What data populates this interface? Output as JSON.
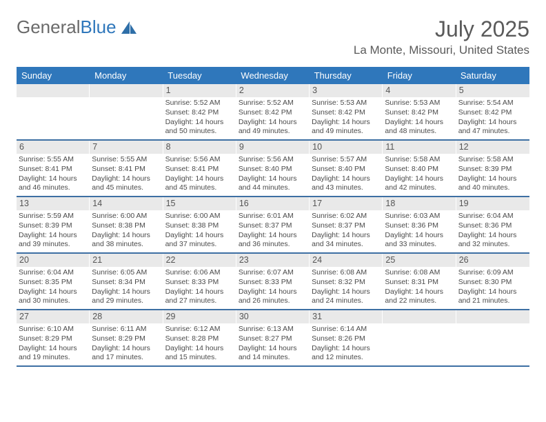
{
  "logo": {
    "general": "General",
    "blue": "Blue"
  },
  "title": "July 2025",
  "location": "La Monte, Missouri, United States",
  "colors": {
    "header_bg": "#2f77bb",
    "header_text": "#ffffff",
    "daynum_bg": "#e9e9e9",
    "border": "#3d6fa3",
    "text": "#4a4a4a",
    "page_bg": "#ffffff"
  },
  "dow": [
    "Sunday",
    "Monday",
    "Tuesday",
    "Wednesday",
    "Thursday",
    "Friday",
    "Saturday"
  ],
  "layout": {
    "columns": 7,
    "rows": 5,
    "first_day_index": 2
  },
  "days": [
    {
      "n": 1,
      "sr": "5:52 AM",
      "ss": "8:42 PM",
      "dh": 14,
      "dm": 50
    },
    {
      "n": 2,
      "sr": "5:52 AM",
      "ss": "8:42 PM",
      "dh": 14,
      "dm": 49
    },
    {
      "n": 3,
      "sr": "5:53 AM",
      "ss": "8:42 PM",
      "dh": 14,
      "dm": 49
    },
    {
      "n": 4,
      "sr": "5:53 AM",
      "ss": "8:42 PM",
      "dh": 14,
      "dm": 48
    },
    {
      "n": 5,
      "sr": "5:54 AM",
      "ss": "8:42 PM",
      "dh": 14,
      "dm": 47
    },
    {
      "n": 6,
      "sr": "5:55 AM",
      "ss": "8:41 PM",
      "dh": 14,
      "dm": 46
    },
    {
      "n": 7,
      "sr": "5:55 AM",
      "ss": "8:41 PM",
      "dh": 14,
      "dm": 45
    },
    {
      "n": 8,
      "sr": "5:56 AM",
      "ss": "8:41 PM",
      "dh": 14,
      "dm": 45
    },
    {
      "n": 9,
      "sr": "5:56 AM",
      "ss": "8:40 PM",
      "dh": 14,
      "dm": 44
    },
    {
      "n": 10,
      "sr": "5:57 AM",
      "ss": "8:40 PM",
      "dh": 14,
      "dm": 43
    },
    {
      "n": 11,
      "sr": "5:58 AM",
      "ss": "8:40 PM",
      "dh": 14,
      "dm": 42
    },
    {
      "n": 12,
      "sr": "5:58 AM",
      "ss": "8:39 PM",
      "dh": 14,
      "dm": 40
    },
    {
      "n": 13,
      "sr": "5:59 AM",
      "ss": "8:39 PM",
      "dh": 14,
      "dm": 39
    },
    {
      "n": 14,
      "sr": "6:00 AM",
      "ss": "8:38 PM",
      "dh": 14,
      "dm": 38
    },
    {
      "n": 15,
      "sr": "6:00 AM",
      "ss": "8:38 PM",
      "dh": 14,
      "dm": 37
    },
    {
      "n": 16,
      "sr": "6:01 AM",
      "ss": "8:37 PM",
      "dh": 14,
      "dm": 36
    },
    {
      "n": 17,
      "sr": "6:02 AM",
      "ss": "8:37 PM",
      "dh": 14,
      "dm": 34
    },
    {
      "n": 18,
      "sr": "6:03 AM",
      "ss": "8:36 PM",
      "dh": 14,
      "dm": 33
    },
    {
      "n": 19,
      "sr": "6:04 AM",
      "ss": "8:36 PM",
      "dh": 14,
      "dm": 32
    },
    {
      "n": 20,
      "sr": "6:04 AM",
      "ss": "8:35 PM",
      "dh": 14,
      "dm": 30
    },
    {
      "n": 21,
      "sr": "6:05 AM",
      "ss": "8:34 PM",
      "dh": 14,
      "dm": 29
    },
    {
      "n": 22,
      "sr": "6:06 AM",
      "ss": "8:33 PM",
      "dh": 14,
      "dm": 27
    },
    {
      "n": 23,
      "sr": "6:07 AM",
      "ss": "8:33 PM",
      "dh": 14,
      "dm": 26
    },
    {
      "n": 24,
      "sr": "6:08 AM",
      "ss": "8:32 PM",
      "dh": 14,
      "dm": 24
    },
    {
      "n": 25,
      "sr": "6:08 AM",
      "ss": "8:31 PM",
      "dh": 14,
      "dm": 22
    },
    {
      "n": 26,
      "sr": "6:09 AM",
      "ss": "8:30 PM",
      "dh": 14,
      "dm": 21
    },
    {
      "n": 27,
      "sr": "6:10 AM",
      "ss": "8:29 PM",
      "dh": 14,
      "dm": 19
    },
    {
      "n": 28,
      "sr": "6:11 AM",
      "ss": "8:29 PM",
      "dh": 14,
      "dm": 17
    },
    {
      "n": 29,
      "sr": "6:12 AM",
      "ss": "8:28 PM",
      "dh": 14,
      "dm": 15
    },
    {
      "n": 30,
      "sr": "6:13 AM",
      "ss": "8:27 PM",
      "dh": 14,
      "dm": 14
    },
    {
      "n": 31,
      "sr": "6:14 AM",
      "ss": "8:26 PM",
      "dh": 14,
      "dm": 12
    }
  ],
  "labels": {
    "sunrise": "Sunrise:",
    "sunset": "Sunset:",
    "daylight": "Daylight:",
    "hours": "hours",
    "and": "and",
    "minutes": "minutes."
  }
}
